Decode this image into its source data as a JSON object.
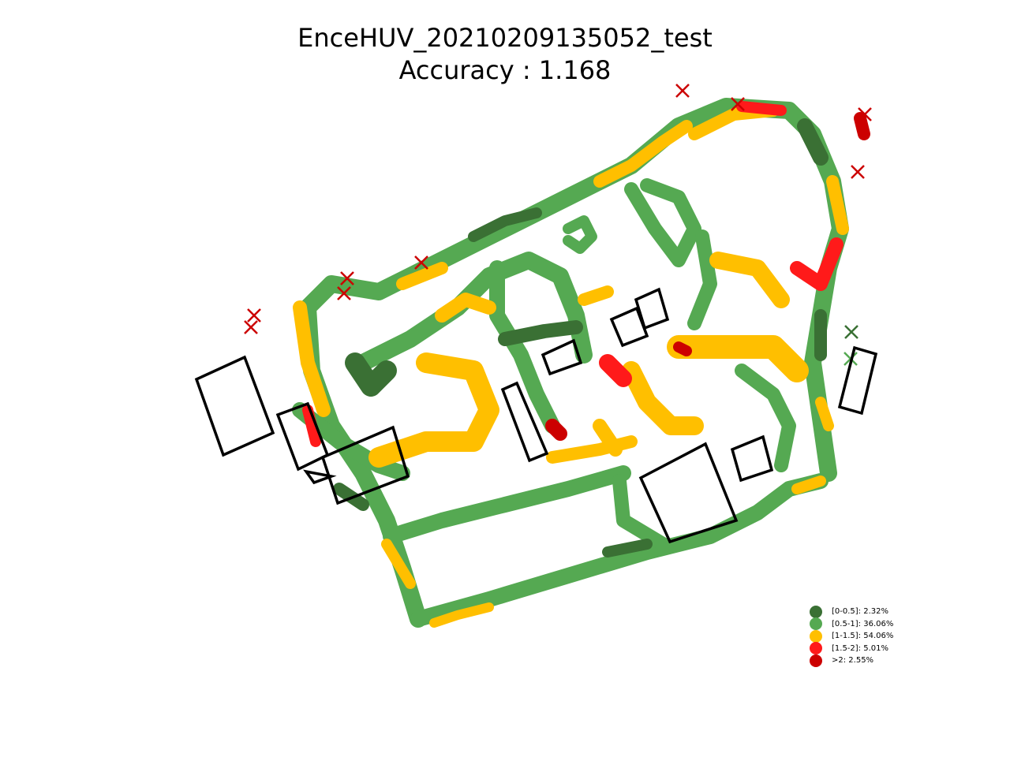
{
  "chart_data": {
    "type": "scatter",
    "title": "EnceHUV_20210209135052_test",
    "subtitle": "Accuracy : 1.168",
    "xlabel": "",
    "ylabel": "",
    "axes_visible": false,
    "grid": false,
    "legend_position": "bottom-right",
    "marker": "x",
    "categories": [
      {
        "label": "[0-0.5]: 2.32%",
        "color": "#3a7034"
      },
      {
        "label": "[0.5-1]: 36.06%",
        "color": "#55a952"
      },
      {
        "label": "[1-1.5]: 54.06%",
        "color": "#ffbf00"
      },
      {
        "label": "[1.5-2]: 5.01%",
        "color": "#ff1a1a"
      },
      {
        "label": ">2: 2.55%",
        "color": "#cc0000"
      }
    ]
  }
}
